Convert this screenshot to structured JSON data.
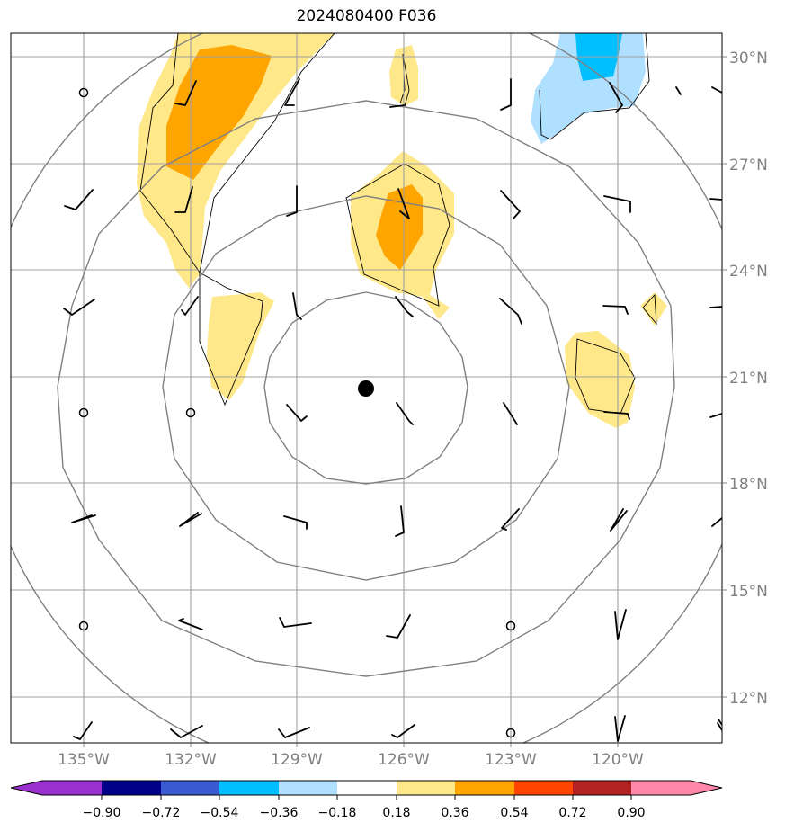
{
  "title": "2024080400 F036",
  "lat_labels": [
    "30°N",
    "27°N",
    "24°N",
    "21°N",
    "18°N",
    "15°N",
    "12°N"
  ],
  "lon_labels": [
    "135°W",
    "132°W",
    "129°W",
    "126°W",
    "123°W",
    "120°W"
  ],
  "colorbar": {
    "ticks": [
      "−0.90",
      "−0.72",
      "−0.54",
      "−0.36",
      "−0.18",
      "0.18",
      "0.36",
      "0.54",
      "0.72",
      "0.90"
    ],
    "colors": [
      "#9b30d0",
      "#00008b",
      "#3a5bd0",
      "#00bfff",
      "#b0e0ff",
      "#ffffff",
      "#ffe88a",
      "#ffa500",
      "#ff4500",
      "#b22222",
      "#ff88aa"
    ]
  },
  "storm_center": {
    "lat": 20.7,
    "lon": -127.0
  },
  "colors": {
    "light_yellow": "#ffe88a",
    "orange": "#ffa500",
    "light_blue": "#b0e0ff",
    "deep_sky_blue": "#00bfff",
    "grid": "#a0a0a0",
    "range_rings": "#808080"
  }
}
